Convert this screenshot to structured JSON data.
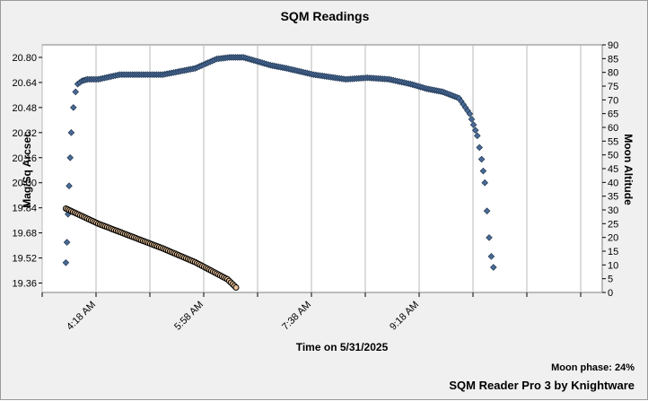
{
  "chart_data": {
    "type": "scatter",
    "title": "SQM Readings",
    "xlabel": "Time on 5/31/2025",
    "ylabel": "Mag/Sq Arcsec",
    "y2label": "Moon Altitude",
    "ylim": [
      19.3,
      20.88
    ],
    "y2lim": [
      0,
      90
    ],
    "xlim": [
      "03:28",
      "12:08"
    ],
    "grid": true,
    "legend": "none",
    "y_ticks": [
      "19.36",
      "19.52",
      "19.68",
      "19.84",
      "20.00",
      "20.16",
      "20.32",
      "20.48",
      "20.64",
      "20.80"
    ],
    "y2_ticks": [
      "0",
      "5",
      "10",
      "15",
      "20",
      "25",
      "30",
      "35",
      "40",
      "45",
      "50",
      "55",
      "60",
      "65",
      "70",
      "75",
      "80",
      "85",
      "90"
    ],
    "x_ticks": [
      "4:18 AM",
      "5:58 AM",
      "7:38 AM",
      "9:18 AM"
    ],
    "series": [
      {
        "axis": "left",
        "color": "#4a6b96",
        "marker": "diamond",
        "x": [
          "03:50",
          "03:51",
          "03:52",
          "03:53",
          "03:54",
          "03:55",
          "03:57",
          "03:59",
          "04:01",
          "04:05",
          "04:10",
          "04:20",
          "04:40",
          "05:20",
          "05:50",
          "06:10",
          "06:22",
          "06:35",
          "07:00",
          "07:15",
          "07:40",
          "08:10",
          "08:30",
          "08:50",
          "09:10",
          "09:25",
          "09:40",
          "09:55",
          "10:05",
          "10:12",
          "10:16",
          "10:19",
          "10:21",
          "10:23",
          "10:25",
          "10:27"
        ],
        "values": [
          19.49,
          19.62,
          19.8,
          19.98,
          20.16,
          20.32,
          20.48,
          20.58,
          20.63,
          20.65,
          20.66,
          20.66,
          20.69,
          20.69,
          20.73,
          20.79,
          20.8,
          20.8,
          20.75,
          20.73,
          20.69,
          20.66,
          20.67,
          20.66,
          20.63,
          20.6,
          20.58,
          20.54,
          20.44,
          20.3,
          20.15,
          20.0,
          19.82,
          19.65,
          19.53,
          19.46
        ]
      },
      {
        "axis": "right",
        "color": "#e8c29a",
        "marker": "circle",
        "x": [
          "03:50",
          "04:20",
          "04:50",
          "05:20",
          "05:50",
          "06:20",
          "06:28"
        ],
        "values": [
          30.5,
          25.0,
          20.5,
          16.0,
          11.0,
          4.8,
          1.8
        ]
      }
    ]
  },
  "moon_phase": "Moon phase: 24%",
  "footer": "SQM Reader Pro 3 by Knightware"
}
